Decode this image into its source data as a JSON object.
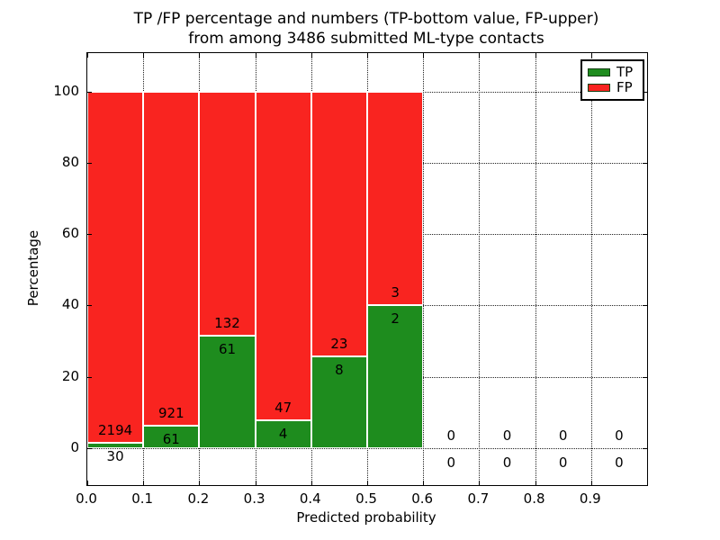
{
  "figure": {
    "title_line1": "TP /FP percentage and numbers (TP-bottom value, FP-upper)",
    "title_line2": "from among 3486 submitted ML-type contacts"
  },
  "chart_data": {
    "type": "bar",
    "stacked": true,
    "normalized_to_percent": true,
    "title": "TP /FP percentage and numbers (TP-bottom value, FP-upper)\nfrom among 3486 submitted ML-type contacts",
    "xlabel": "Predicted probability",
    "ylabel": "Percentage",
    "total_submitted": 3486,
    "xlim": [
      0.0,
      1.0
    ],
    "ylim": [
      -10.5,
      111
    ],
    "grid": true,
    "legend_position": "upper right",
    "legend": [
      {
        "label": "TP",
        "color": "#1e8c1e"
      },
      {
        "label": "FP",
        "color": "#f92420"
      }
    ],
    "colors": {
      "tp": "#1e8c1e",
      "fp": "#f92420",
      "bar_edge": "#ffffff"
    },
    "xticks": [
      {
        "v": 0.0,
        "label": "0.0"
      },
      {
        "v": 0.1,
        "label": "0.1"
      },
      {
        "v": 0.2,
        "label": "0.2"
      },
      {
        "v": 0.3,
        "label": "0.3"
      },
      {
        "v": 0.4,
        "label": "0.4"
      },
      {
        "v": 0.5,
        "label": "0.5"
      },
      {
        "v": 0.6,
        "label": "0.6"
      },
      {
        "v": 0.7,
        "label": "0.7"
      },
      {
        "v": 0.8,
        "label": "0.8"
      },
      {
        "v": 0.9,
        "label": "0.9"
      }
    ],
    "yticks": [
      {
        "v": 0,
        "label": "0"
      },
      {
        "v": 20,
        "label": "20"
      },
      {
        "v": 40,
        "label": "40"
      },
      {
        "v": 60,
        "label": "60"
      },
      {
        "v": 80,
        "label": "80"
      },
      {
        "v": 100,
        "label": "100"
      }
    ],
    "bins": [
      {
        "range": [
          0.0,
          0.1
        ],
        "tp": 30,
        "fp": 2194
      },
      {
        "range": [
          0.1,
          0.2
        ],
        "tp": 61,
        "fp": 921
      },
      {
        "range": [
          0.2,
          0.3
        ],
        "tp": 61,
        "fp": 132
      },
      {
        "range": [
          0.3,
          0.4
        ],
        "tp": 4,
        "fp": 47
      },
      {
        "range": [
          0.4,
          0.5
        ],
        "tp": 8,
        "fp": 23
      },
      {
        "range": [
          0.5,
          0.6
        ],
        "tp": 2,
        "fp": 3
      },
      {
        "range": [
          0.6,
          0.7
        ],
        "tp": 0,
        "fp": 0
      },
      {
        "range": [
          0.7,
          0.8
        ],
        "tp": 0,
        "fp": 0
      },
      {
        "range": [
          0.8,
          0.9
        ],
        "tp": 0,
        "fp": 0
      },
      {
        "range": [
          0.9,
          1.0
        ],
        "tp": 0,
        "fp": 0
      }
    ]
  }
}
